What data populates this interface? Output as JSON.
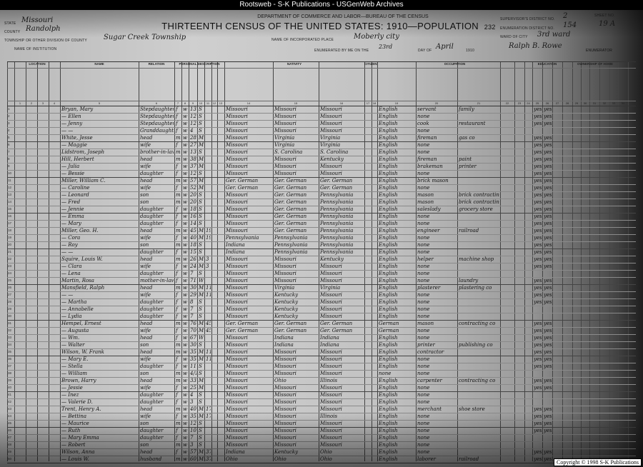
{
  "window_title": "Rootsweb - S-K Publications - USGenWeb Archives",
  "form": {
    "department": "DEPARTMENT OF COMMERCE AND LABOR—BUREAU OF THE CENSUS",
    "title": "THIRTEENTH CENSUS OF THE UNITED STATES: 1910—POPULATION",
    "page_number": "232",
    "state_label": "STATE",
    "state": "Missouri",
    "county_label": "COUNTY",
    "county": "Randolph",
    "township_label": "TOWNSHIP OR OTHER DIVISION OF COUNTY",
    "township": "Sugar Creek Township",
    "institution_label": "NAME OF INSTITUTION",
    "place_label": "NAME OF INCORPORATED PLACE",
    "place": "Moberly city",
    "enumerated_label": "ENUMERATED BY ME ON THE",
    "enumerated_day": "23rd",
    "day_of_label": "DAY OF",
    "month": "April",
    "year": "1910",
    "enumerator_name": "Ralph B. Rowe",
    "enumerator_label": "ENUMERATOR",
    "supervisor_label": "SUPERVISOR'S DISTRICT NO.",
    "supervisor": "2",
    "ed_label": "ENUMERATION DISTRICT NO.",
    "ed": "154",
    "sheet_label": "SHEET NO.",
    "sheet": "19 A",
    "ward_label": "WARD OF CITY",
    "ward": "3rd ward"
  },
  "sections": [
    "LOCATION",
    "NAME",
    "RELATION",
    "PERSONAL DESCRIPTION",
    "NATIVITY",
    "CITIZENSHIP",
    "OCCUPATION",
    "EDUCATION",
    "OWNERSHIP OF HOME"
  ],
  "rows": [
    [
      "Bryan, Mary",
      "Stepdaughter",
      "f",
      "w",
      "13",
      "S",
      "",
      "Missouri",
      "Missouri",
      "Missouri",
      "English",
      "servant",
      "family",
      "yes",
      "yes"
    ],
    [
      "— Ellen",
      "Stepdaughter",
      "f",
      "w",
      "12",
      "S",
      "",
      "Missouri",
      "Missouri",
      "Missouri",
      "English",
      "none",
      "",
      "yes",
      "yes"
    ],
    [
      "— Jenny",
      "Stepdaughter",
      "f",
      "w",
      "12",
      "S",
      "",
      "Missouri",
      "Missouri",
      "Missouri",
      "English",
      "cook",
      "restaurant",
      "yes",
      "yes"
    ],
    [
      "— —",
      "Granddaughter",
      "f",
      "w",
      "4",
      "S",
      "",
      "Missouri",
      "Missouri",
      "Missouri",
      "English",
      "none",
      "",
      "",
      ""
    ],
    [
      "White, Jesse",
      "head",
      "m",
      "w",
      "28",
      "M1",
      "",
      "Missouri",
      "Virginia",
      "Virginia",
      "English",
      "fireman",
      "gas co",
      "yes",
      "yes"
    ],
    [
      "— Maggie",
      "wife",
      "f",
      "w",
      "27",
      "M1",
      "",
      "Missouri",
      "Virginia",
      "Virginia",
      "English",
      "none",
      "",
      "yes",
      "yes"
    ],
    [
      "Lidstrom, Joseph",
      "brother-in-law",
      "m",
      "w",
      "13",
      "S",
      "",
      "Missouri",
      "S. Carolina",
      "S. Carolina",
      "English",
      "none",
      "",
      "yes",
      "yes"
    ],
    [
      "Hill, Herbert",
      "head",
      "m",
      "w",
      "38",
      "M1",
      "",
      "Missouri",
      "Missouri",
      "Kentucky",
      "English",
      "fireman",
      "paint",
      "yes",
      "yes"
    ],
    [
      "— Julia",
      "wife",
      "f",
      "w",
      "37",
      "M1",
      "",
      "Missouri",
      "Missouri",
      "Missouri",
      "English",
      "brakeman",
      "printer",
      "yes",
      "yes"
    ],
    [
      "— Bessie",
      "daughter",
      "f",
      "w",
      "12",
      "S",
      "",
      "Missouri",
      "Missouri",
      "Missouri",
      "English",
      "none",
      "",
      "yes",
      "yes"
    ],
    [
      "Miller, William C.",
      "head",
      "m",
      "w",
      "57",
      "M1",
      "",
      "Ger. German",
      "Ger. German",
      "Ger. German",
      "English",
      "brick mason",
      "",
      "yes",
      "yes"
    ],
    [
      "— Caroline",
      "wife",
      "f",
      "w",
      "52",
      "M1",
      "",
      "Ger. German",
      "Ger. German",
      "Ger. German",
      "English",
      "none",
      "",
      "yes",
      "yes"
    ],
    [
      "— Leonard",
      "son",
      "m",
      "w",
      "20",
      "S",
      "",
      "Missouri",
      "Ger. German",
      "Pennsylvania",
      "English",
      "mason",
      "brick contracting",
      "yes",
      "yes"
    ],
    [
      "— Fred",
      "son",
      "m",
      "w",
      "20",
      "S",
      "",
      "Missouri",
      "Ger. German",
      "Pennsylvania",
      "English",
      "mason",
      "brick contracting",
      "yes",
      "yes"
    ],
    [
      "— Jennie",
      "daughter",
      "f",
      "w",
      "18",
      "S",
      "",
      "Missouri",
      "Ger. German",
      "Pennsylvania",
      "English",
      "saleslady",
      "grocery store",
      "yes",
      "yes"
    ],
    [
      "— Emma",
      "daughter",
      "f",
      "w",
      "16",
      "S",
      "",
      "Missouri",
      "Ger. German",
      "Pennsylvania",
      "English",
      "none",
      "",
      "yes",
      "yes"
    ],
    [
      "— Mary",
      "daughter",
      "f",
      "w",
      "14",
      "S",
      "",
      "Missouri",
      "Ger. German",
      "Pennsylvania",
      "English",
      "none",
      "",
      "yes",
      "yes"
    ],
    [
      "Miller, Geo. H.",
      "head",
      "m",
      "w",
      "45",
      "M1",
      "19",
      "Missouri",
      "Ger. German",
      "Pennsylvania",
      "English",
      "engineer",
      "railroad",
      "yes",
      "yes"
    ],
    [
      "— Cora",
      "wife",
      "f",
      "w",
      "40",
      "M1",
      "19",
      "Pennsylvania",
      "Pennsylvania",
      "Pennsylvania",
      "English",
      "none",
      "",
      "yes",
      "yes"
    ],
    [
      "— Roy",
      "son",
      "m",
      "w",
      "18",
      "S",
      "",
      "Indiana",
      "Pennsylvania",
      "Pennsylvania",
      "English",
      "none",
      "",
      "yes",
      "yes"
    ],
    [
      "— —",
      "daughter",
      "f",
      "w",
      "15",
      "S",
      "",
      "Indiana",
      "Pennsylvania",
      "Pennsylvania",
      "English",
      "none",
      "",
      "yes",
      "yes"
    ],
    [
      "Squire, Louis W.",
      "head",
      "m",
      "w",
      "26",
      "M1",
      "3",
      "Missouri",
      "Missouri",
      "Kentucky",
      "English",
      "helper",
      "machine shop",
      "yes",
      "yes"
    ],
    [
      "— Clara",
      "wife",
      "f",
      "w",
      "24",
      "M1",
      "3",
      "Missouri",
      "Missouri",
      "Missouri",
      "English",
      "none",
      "",
      "yes",
      "yes"
    ],
    [
      "— Lena",
      "daughter",
      "f",
      "w",
      "7",
      "S",
      "",
      "Missouri",
      "Missouri",
      "Missouri",
      "English",
      "none",
      "",
      "",
      ""
    ],
    [
      "Martin, Rosa",
      "mother-in-law",
      "f",
      "w",
      "71",
      "Wd",
      "",
      "Missouri",
      "Missouri",
      "Missouri",
      "English",
      "none",
      "laundry",
      "yes",
      "yes"
    ],
    [
      "Mansfield, Ralph",
      "head",
      "m",
      "w",
      "30",
      "M1",
      "11",
      "Missouri",
      "Virginia",
      "Virginia",
      "English",
      "plasterer",
      "plastering co",
      "yes",
      "yes"
    ],
    [
      "— —",
      "wife",
      "f",
      "w",
      "29",
      "M1",
      "11",
      "Missouri",
      "Kentucky",
      "Missouri",
      "English",
      "none",
      "",
      "yes",
      "yes"
    ],
    [
      "— Martha",
      "daughter",
      "f",
      "w",
      "8",
      "S",
      "",
      "Missouri",
      "Kentucky",
      "Missouri",
      "English",
      "none",
      "",
      "yes",
      "yes"
    ],
    [
      "— Annabelle",
      "daughter",
      "f",
      "w",
      "7",
      "S",
      "",
      "Missouri",
      "Kentucky",
      "Missouri",
      "English",
      "none",
      "",
      "",
      ""
    ],
    [
      "— Lydia",
      "daughter",
      "f",
      "w",
      "7",
      "S",
      "",
      "Missouri",
      "Kentucky",
      "Missouri",
      "English",
      "none",
      "",
      "",
      ""
    ],
    [
      "Hempel, Ernest",
      "head",
      "m",
      "w",
      "76",
      "M1",
      "45",
      "Ger. German",
      "Ger. German",
      "Ger. German",
      "German",
      "mason",
      "contracting co",
      "yes",
      "yes"
    ],
    [
      "— Augusta",
      "wife",
      "f",
      "w",
      "70",
      "M1",
      "45",
      "Ger. German",
      "Ger. German",
      "Ger. German",
      "German",
      "none",
      "",
      "yes",
      "yes"
    ],
    [
      "— Wm.",
      "head",
      "f",
      "w",
      "67",
      "Wd",
      "",
      "Missouri",
      "Indiana",
      "Indiana",
      "English",
      "none",
      "",
      "yes",
      "yes"
    ],
    [
      "— Walter",
      "son",
      "m",
      "w",
      "30",
      "S",
      "",
      "Missouri",
      "Indiana",
      "Indiana",
      "English",
      "printer",
      "publishing co",
      "yes",
      "yes"
    ],
    [
      "Wilson, W. Frank",
      "head",
      "m",
      "w",
      "35",
      "M1",
      "11",
      "Missouri",
      "Missouri",
      "Missouri",
      "English",
      "contractor",
      "",
      "yes",
      "yes"
    ],
    [
      "— Mary E.",
      "wife",
      "f",
      "w",
      "35",
      "M1",
      "11",
      "Missouri",
      "Missouri",
      "Missouri",
      "English",
      "none",
      "",
      "yes",
      "yes"
    ],
    [
      "— Stella",
      "daughter",
      "f",
      "w",
      "11",
      "S",
      "",
      "Missouri",
      "Missouri",
      "Missouri",
      "English",
      "none",
      "",
      "yes",
      "yes"
    ],
    [
      "— William",
      "son",
      "m",
      "w",
      "4/12",
      "S",
      "",
      "Missouri",
      "Missouri",
      "Missouri",
      "none",
      "none",
      "",
      "",
      ""
    ],
    [
      "Brown, Harry",
      "head",
      "m",
      "w",
      "33",
      "M1",
      "",
      "Missouri",
      "Ohio",
      "Illinois",
      "English",
      "carpenter",
      "contracting co",
      "yes",
      "yes"
    ],
    [
      "— Jessie",
      "wife",
      "f",
      "w",
      "25",
      "M1",
      "",
      "Missouri",
      "Missouri",
      "Missouri",
      "English",
      "none",
      "",
      "yes",
      "yes"
    ],
    [
      "— Inez",
      "daughter",
      "f",
      "w",
      "4",
      "S",
      "",
      "Missouri",
      "Missouri",
      "Missouri",
      "English",
      "none",
      "",
      "",
      ""
    ],
    [
      "— Valerie D.",
      "daughter",
      "f",
      "w",
      "3",
      "S",
      "",
      "Missouri",
      "Missouri",
      "Missouri",
      "English",
      "none",
      "",
      "",
      ""
    ],
    [
      "Trent, Henry A.",
      "head",
      "m",
      "w",
      "40",
      "M1",
      "17",
      "Missouri",
      "Missouri",
      "Missouri",
      "English",
      "merchant",
      "shoe store",
      "yes",
      "yes"
    ],
    [
      "— Bettina",
      "wife",
      "f",
      "w",
      "35",
      "M1",
      "17",
      "Missouri",
      "Missouri",
      "Illinois",
      "English",
      "none",
      "",
      "yes",
      "yes"
    ],
    [
      "— Maurice",
      "son",
      "m",
      "w",
      "12",
      "S",
      "",
      "Missouri",
      "Missouri",
      "Missouri",
      "English",
      "none",
      "",
      "yes",
      "yes"
    ],
    [
      "— Ruth",
      "daughter",
      "f",
      "w",
      "10",
      "S",
      "",
      "Missouri",
      "Missouri",
      "Missouri",
      "English",
      "none",
      "",
      "yes",
      "yes"
    ],
    [
      "— Mary Emma",
      "daughter",
      "f",
      "w",
      "7",
      "S",
      "",
      "Missouri",
      "Missouri",
      "Missouri",
      "English",
      "none",
      "",
      "",
      ""
    ],
    [
      "— Robert",
      "son",
      "m",
      "w",
      "3",
      "S",
      "",
      "Missouri",
      "Missouri",
      "Missouri",
      "English",
      "none",
      "",
      "",
      ""
    ],
    [
      "Wilson, Anna",
      "head",
      "f",
      "w",
      "57",
      "M1",
      "37",
      "Indiana",
      "Kentucky",
      "Ohio",
      "English",
      "none",
      "",
      "yes",
      "yes"
    ],
    [
      "— Louis W.",
      "husband",
      "m",
      "w",
      "60",
      "M1",
      "37",
      "Ohio",
      "Ohio",
      "Ohio",
      "English",
      "laborer",
      "railroad",
      "yes",
      "yes"
    ]
  ],
  "copyright": "Copyright © 1998 S-K Publications"
}
